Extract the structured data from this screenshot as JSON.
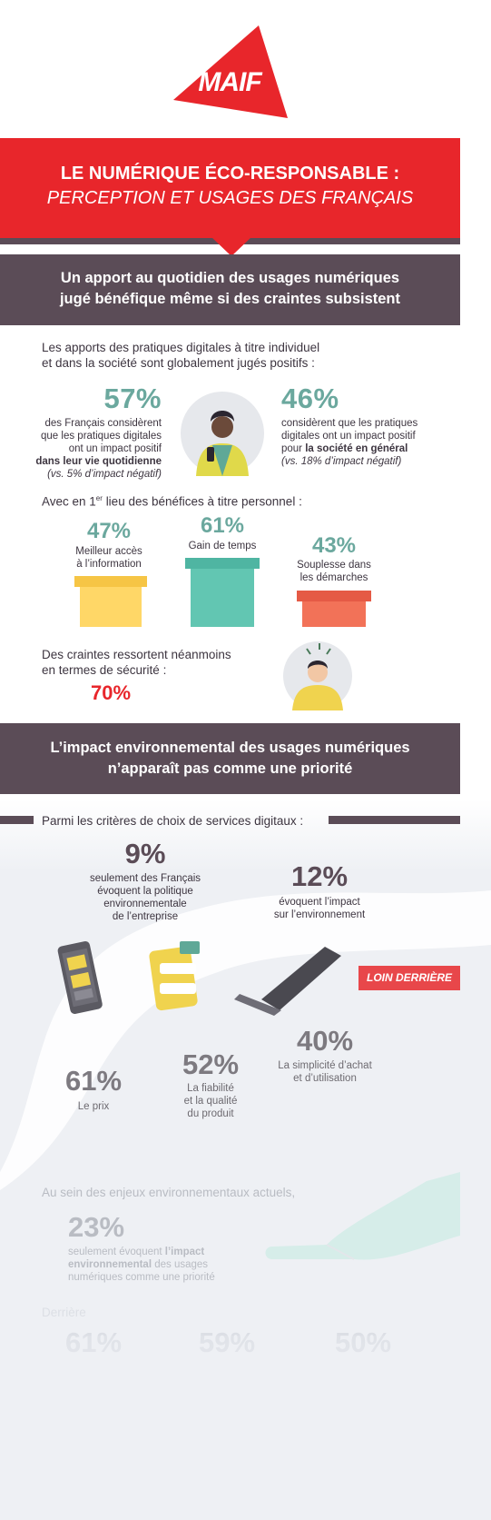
{
  "logo": "MAIF",
  "header": {
    "title": [
      "LE NUMÉRIQUE ÉCO-RESPONSABLE :",
      "PERCEPTION ET USAGES DES FRANÇAIS"
    ]
  },
  "section1": {
    "title": [
      "Un apport au quotidien des usages numériques",
      "jugé bénéfique même si des craintes subsistent"
    ],
    "intro": [
      "Les apports des pratiques digitales à titre individuel",
      "et dans la société sont globalement jugés positifs :"
    ],
    "stats": [
      {
        "value": "57%",
        "text": [
          "des Français considèrent",
          "que les pratiques digitales",
          "ont un impact positif"
        ],
        "bold": "dans leur vie quotidienne",
        "note": "(vs. 5% d’impact négatif)"
      },
      {
        "value": "46%",
        "text": [
          "considèrent que les pratiques",
          "digitales ont un impact positif",
          "pour"
        ],
        "bold": "la société en général",
        "note": "(vs. 18% d’impact négatif)"
      }
    ],
    "benefits": {
      "intro": "Avec en 1",
      "sup": "er",
      "intro_end": "lieu des bénéfices à titre personnel :",
      "items": [
        {
          "value": "47%",
          "label": [
            "Meilleur accès",
            "à l’information"
          ]
        },
        {
          "value": "61%",
          "label": [
            "Gain de temps"
          ]
        },
        {
          "value": "43%",
          "label": [
            "Souplesse dans",
            "les démarches"
          ]
        }
      ]
    },
    "fears": {
      "text": [
        "Des craintes ressortent néanmoins",
        "en termes de sécurité :"
      ],
      "value": "70%"
    }
  },
  "section2": {
    "title": [
      "L’impact environnemental des usages numériques",
      "n’apparaît pas comme une priorité"
    ],
    "criteria_intro": "Parmi les critères de choix de services digitaux :",
    "highlights": [
      {
        "value": "9%",
        "label": [
          "seulement des Français",
          "évoquent la politique",
          "environnementale",
          "de l’entreprise"
        ]
      },
      {
        "value": "12%",
        "label": [
          "évoquent l’impact",
          "sur l’environnement"
        ]
      }
    ],
    "tag": "LOIN DERRIÈRE",
    "others": [
      {
        "value": "61%",
        "label": [
          "Le prix"
        ]
      },
      {
        "value": "52%",
        "label": [
          "La fiabilité",
          "et la qualité",
          "du produit"
        ]
      },
      {
        "value": "40%",
        "label": [
          "La simplicité d’achat",
          "et d’utilisation"
        ]
      }
    ],
    "env": {
      "intro": "Au sein des enjeux environnementaux actuels,",
      "value": "23%",
      "line1": "seulement évoquent",
      "line1_bold": "l’impact",
      "line2_bold": "environnemental",
      "line2": "des usages",
      "line3": "numériques comme une priorité"
    },
    "behind": {
      "label": "Derrière",
      "values": [
        "61%",
        "59%",
        "50%"
      ]
    }
  }
}
